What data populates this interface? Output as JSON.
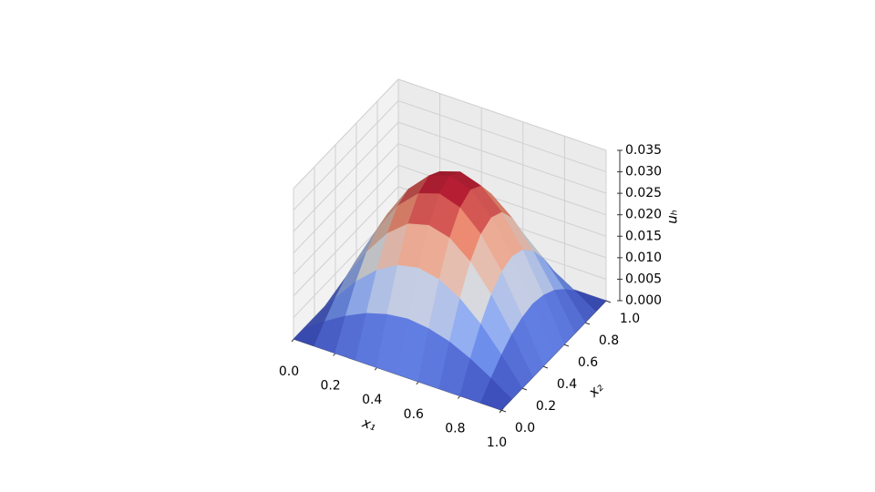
{
  "chart_data": {
    "type": "surface",
    "x_label": "x₁",
    "y_label": "x₂",
    "z_label": "uₕ",
    "x": [
      0,
      0.1,
      0.2,
      0.3,
      0.4,
      0.5,
      0.6,
      0.7,
      0.8,
      0.9,
      1
    ],
    "y": [
      0,
      0.1,
      0.2,
      0.3,
      0.4,
      0.5,
      0.6,
      0.7,
      0.8,
      0.9,
      1
    ],
    "z": [
      [
        0,
        0,
        0,
        0,
        0,
        0,
        0,
        0,
        0,
        0,
        0
      ],
      [
        0,
        0.0032,
        0.0061,
        0.0084,
        0.0098,
        0.0104,
        0.0098,
        0.0084,
        0.0061,
        0.0032,
        0
      ],
      [
        0,
        0.0061,
        0.0116,
        0.0159,
        0.0187,
        0.0197,
        0.0187,
        0.0159,
        0.0116,
        0.0061,
        0
      ],
      [
        0,
        0.0084,
        0.0159,
        0.0219,
        0.0258,
        0.0271,
        0.0258,
        0.0219,
        0.0159,
        0.0084,
        0
      ],
      [
        0,
        0.0098,
        0.0187,
        0.0258,
        0.0303,
        0.0319,
        0.0303,
        0.0258,
        0.0187,
        0.0098,
        0
      ],
      [
        0,
        0.0104,
        0.0197,
        0.0271,
        0.0319,
        0.0335,
        0.0319,
        0.0271,
        0.0197,
        0.0104,
        0
      ],
      [
        0,
        0.0098,
        0.0187,
        0.0258,
        0.0303,
        0.0319,
        0.0303,
        0.0258,
        0.0187,
        0.0098,
        0
      ],
      [
        0,
        0.0084,
        0.0159,
        0.0219,
        0.0258,
        0.0271,
        0.0258,
        0.0219,
        0.0159,
        0.0084,
        0
      ],
      [
        0,
        0.0061,
        0.0116,
        0.0159,
        0.0187,
        0.0197,
        0.0187,
        0.0159,
        0.0116,
        0.0061,
        0
      ],
      [
        0,
        0.0032,
        0.0061,
        0.0084,
        0.0098,
        0.0104,
        0.0098,
        0.0084,
        0.0061,
        0.0032,
        0
      ],
      [
        0,
        0,
        0,
        0,
        0,
        0,
        0,
        0,
        0,
        0,
        0
      ]
    ],
    "colormap": "coolwarm",
    "xlim": [
      0,
      1
    ],
    "ylim": [
      0,
      1
    ],
    "zlim": [
      0,
      0.035
    ],
    "xticks": [
      {
        "value": 0,
        "label": "0.0"
      },
      0.2,
      0.4,
      0.6,
      0.8,
      {
        "value": 1,
        "label": "1.0"
      }
    ],
    "yticks": [
      {
        "value": 0,
        "label": "0.0"
      },
      0.2,
      0.4,
      0.6,
      0.8,
      {
        "value": 1,
        "label": "1.0"
      }
    ],
    "zticks": [
      {
        "value": 0,
        "label": "0.000"
      },
      {
        "value": 0.005,
        "label": "0.005"
      },
      {
        "value": 0.01,
        "label": "0.010"
      },
      {
        "value": 0.015,
        "label": "0.015"
      },
      {
        "value": 0.02,
        "label": "0.020"
      },
      {
        "value": 0.025,
        "label": "0.025"
      },
      {
        "value": 0.03,
        "label": "0.030"
      },
      {
        "value": 0.035,
        "label": "0.035"
      }
    ],
    "grid": true
  }
}
